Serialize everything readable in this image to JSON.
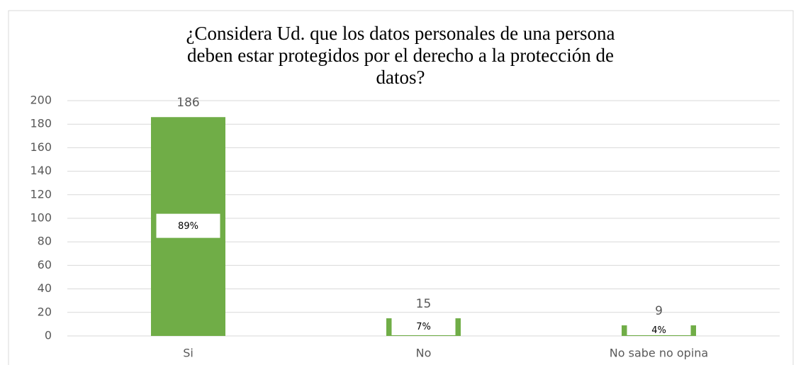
{
  "chart_data": {
    "type": "bar",
    "title": [
      "¿Considera Ud. que los datos personales de una persona",
      "deben estar protegidos por el derecho a la protección de",
      "datos?"
    ],
    "categories": [
      "Si",
      "No",
      "No sabe no opina"
    ],
    "values": [
      186,
      15,
      9
    ],
    "percent_labels": [
      "89%",
      "7%",
      "4%"
    ],
    "color": "#70ad47",
    "ylim": [
      0,
      200
    ],
    "yticks": [
      0,
      20,
      40,
      60,
      80,
      100,
      120,
      140,
      160,
      180,
      200
    ],
    "grid": true
  }
}
